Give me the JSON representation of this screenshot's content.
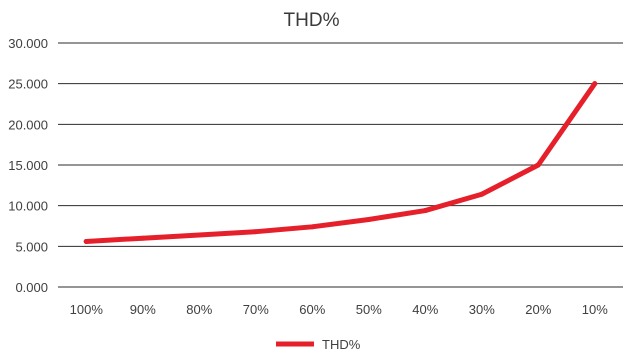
{
  "chart_data": {
    "type": "line",
    "title": "THD%",
    "categories": [
      "100%",
      "90%",
      "80%",
      "70%",
      "60%",
      "50%",
      "40%",
      "30%",
      "20%",
      "10%"
    ],
    "series": [
      {
        "name": "THD%",
        "values": [
          5.6,
          6.0,
          6.4,
          6.8,
          7.4,
          8.3,
          9.4,
          11.4,
          15.0,
          25.0
        ],
        "color": "#e5202a"
      }
    ],
    "y_ticks": [
      "0.000",
      "5.000",
      "10.000",
      "15.000",
      "20.000",
      "25.000",
      "30.000"
    ],
    "ylim": [
      0,
      30
    ],
    "grid": true,
    "legend_position": "bottom"
  }
}
